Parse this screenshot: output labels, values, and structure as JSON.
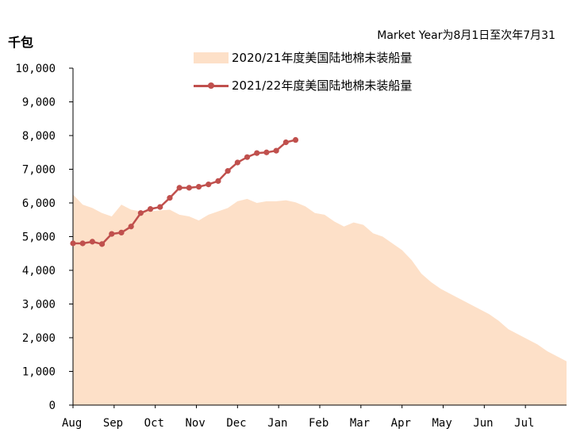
{
  "chart_data": {
    "type": "line",
    "ylabel": "千包",
    "note": "Market Year为8月1日至次年7月31",
    "ylim": [
      0,
      10000
    ],
    "yticks": [
      "0",
      "1,000",
      "2,000",
      "3,000",
      "4,000",
      "5,000",
      "6,000",
      "7,000",
      "8,000",
      "9,000",
      "10,000"
    ],
    "xticks": [
      "Aug",
      "Sep",
      "Oct",
      "Nov",
      "Dec",
      "Jan",
      "Feb",
      "Mar",
      "Apr",
      "May",
      "Jun",
      "Jul"
    ],
    "legend_position": "top",
    "series": [
      {
        "name": "2020/21年度美国陆地棉未装船量",
        "type": "area",
        "color": "#fde0c8",
        "x_week": [
          0,
          1,
          2,
          3,
          4,
          5,
          6,
          7,
          8,
          9,
          10,
          11,
          12,
          13,
          14,
          15,
          16,
          17,
          18,
          19,
          20,
          21,
          22,
          23,
          24,
          25,
          26,
          27,
          28,
          29,
          30,
          31,
          32,
          33,
          34,
          35,
          36,
          37,
          38,
          39,
          40,
          41,
          42,
          43,
          44,
          45,
          46,
          47,
          48,
          49,
          50,
          51
        ],
        "values": [
          6250,
          5950,
          5850,
          5700,
          5600,
          5950,
          5800,
          5750,
          5750,
          5780,
          5800,
          5650,
          5600,
          5480,
          5650,
          5750,
          5850,
          6050,
          6120,
          6000,
          6050,
          6050,
          6080,
          6020,
          5900,
          5700,
          5650,
          5450,
          5300,
          5420,
          5350,
          5100,
          5000,
          4800,
          4600,
          4300,
          3900,
          3650,
          3450,
          3300,
          3150,
          3000,
          2850,
          2700,
          2500,
          2250,
          2100,
          1950,
          1800,
          1600,
          1450,
          1300
        ]
      },
      {
        "name": "2021/22年度美国陆地棉未装船量",
        "type": "line",
        "color": "#c0504d",
        "x_week": [
          0,
          1,
          2,
          3,
          4,
          5,
          6,
          7,
          8,
          9,
          10,
          11,
          12,
          13,
          14,
          15,
          16,
          17,
          18,
          19,
          20,
          21,
          22,
          23
        ],
        "values": [
          4800,
          4800,
          4850,
          4780,
          5080,
          5120,
          5300,
          5700,
          5820,
          5880,
          6150,
          6450,
          6450,
          6480,
          6550,
          6650,
          6950,
          7200,
          7360,
          7480,
          7500,
          7550,
          7800,
          7870
        ]
      }
    ]
  }
}
